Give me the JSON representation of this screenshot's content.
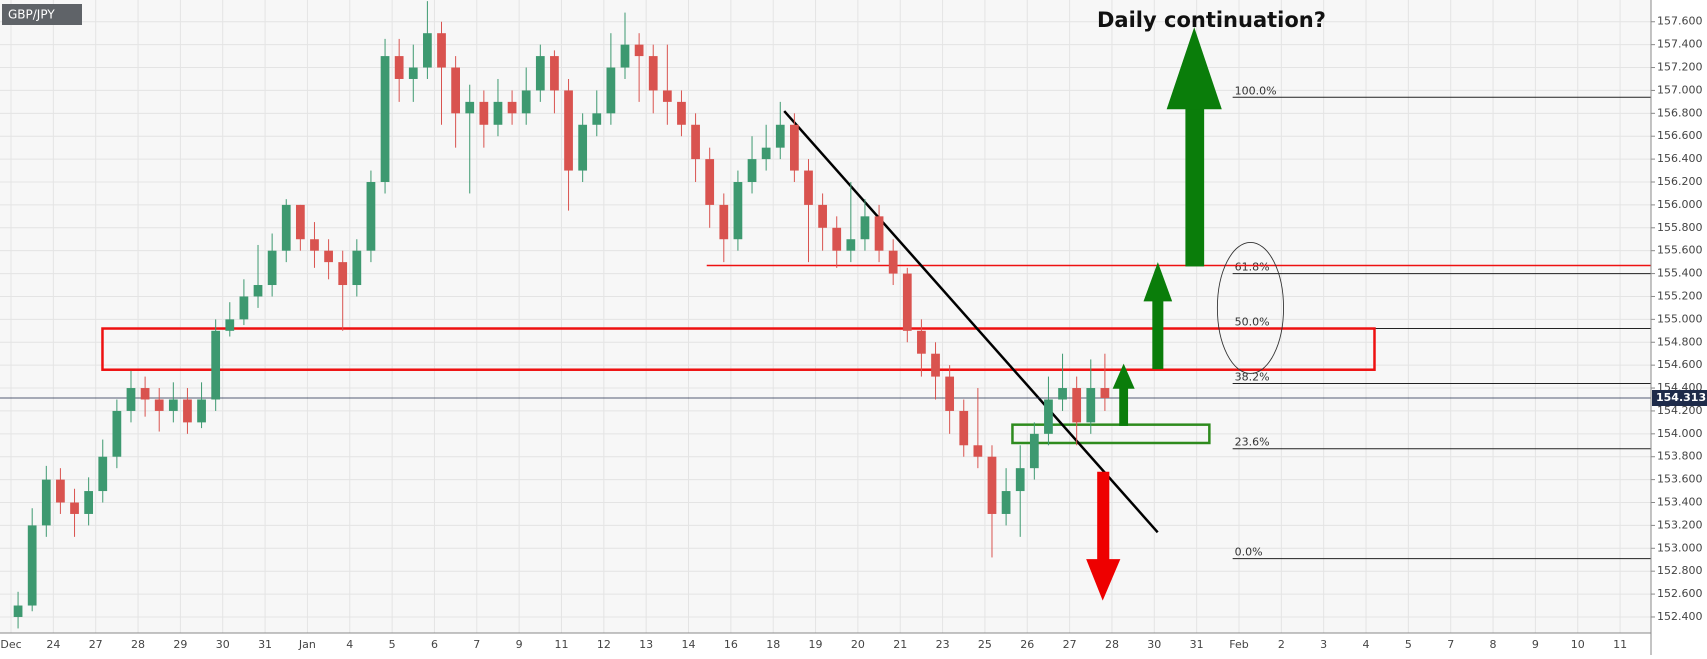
{
  "chart_data": {
    "type": "candlestick",
    "title": "GBP/JPY",
    "annotation": "Daily continuation?",
    "xlim": [
      -0.26,
      38.73
    ],
    "ylim": [
      152.26,
      157.79
    ],
    "xticks": [
      {
        "value": 0,
        "label": "Dec"
      },
      {
        "value": 1,
        "label": "24"
      },
      {
        "value": 2,
        "label": "27"
      },
      {
        "value": 3,
        "label": "28"
      },
      {
        "value": 4,
        "label": "29"
      },
      {
        "value": 5,
        "label": "30"
      },
      {
        "value": 6,
        "label": "31"
      },
      {
        "value": 7,
        "label": "Jan"
      },
      {
        "value": 8,
        "label": "4"
      },
      {
        "value": 9,
        "label": "5"
      },
      {
        "value": 10,
        "label": "6"
      },
      {
        "value": 11,
        "label": "7"
      },
      {
        "value": 12,
        "label": "9"
      },
      {
        "value": 13,
        "label": "11"
      },
      {
        "value": 14,
        "label": "12"
      },
      {
        "value": 15,
        "label": "13"
      },
      {
        "value": 16,
        "label": "14"
      },
      {
        "value": 17,
        "label": "16"
      },
      {
        "value": 18,
        "label": "18"
      },
      {
        "value": 19,
        "label": "19"
      },
      {
        "value": 20,
        "label": "20"
      },
      {
        "value": 21,
        "label": "21"
      },
      {
        "value": 22,
        "label": "23"
      },
      {
        "value": 23,
        "label": "25"
      },
      {
        "value": 24,
        "label": "26"
      },
      {
        "value": 25,
        "label": "27"
      },
      {
        "value": 26,
        "label": "28"
      },
      {
        "value": 27,
        "label": "30"
      },
      {
        "value": 28,
        "label": "31"
      },
      {
        "value": 29,
        "label": "Feb"
      },
      {
        "value": 30,
        "label": "2"
      },
      {
        "value": 31,
        "label": "3"
      },
      {
        "value": 32,
        "label": "4"
      },
      {
        "value": 33,
        "label": "5"
      },
      {
        "value": 34,
        "label": "7"
      },
      {
        "value": 35,
        "label": "8"
      },
      {
        "value": 36,
        "label": "9"
      },
      {
        "value": 37,
        "label": "10"
      },
      {
        "value": 38,
        "label": "11"
      }
    ],
    "yticks": [
      {
        "value": 152.4,
        "label": "152.400"
      },
      {
        "value": 152.6,
        "label": "152.600"
      },
      {
        "value": 152.8,
        "label": "152.800"
      },
      {
        "value": 153.0,
        "label": "153.000"
      },
      {
        "value": 153.2,
        "label": "153.200"
      },
      {
        "value": 153.4,
        "label": "153.400"
      },
      {
        "value": 153.6,
        "label": "153.600"
      },
      {
        "value": 153.8,
        "label": "153.800"
      },
      {
        "value": 154.0,
        "label": "154.000"
      },
      {
        "value": 154.2,
        "label": "154.200"
      },
      {
        "value": 154.4,
        "label": "154.400"
      },
      {
        "value": 154.6,
        "label": "154.600"
      },
      {
        "value": 154.8,
        "label": "154.800"
      },
      {
        "value": 155.0,
        "label": "155.000"
      },
      {
        "value": 155.2,
        "label": "155.200"
      },
      {
        "value": 155.4,
        "label": "155.400"
      },
      {
        "value": 155.6,
        "label": "155.600"
      },
      {
        "value": 155.8,
        "label": "155.800"
      },
      {
        "value": 156.0,
        "label": "156.000"
      },
      {
        "value": 156.2,
        "label": "156.200"
      },
      {
        "value": 156.4,
        "label": "156.400"
      },
      {
        "value": 156.6,
        "label": "156.600"
      },
      {
        "value": 156.8,
        "label": "156.800"
      },
      {
        "value": 157.0,
        "label": "157.000"
      },
      {
        "value": 157.2,
        "label": "157.200"
      },
      {
        "value": 157.4,
        "label": "157.400"
      },
      {
        "value": 157.6,
        "label": "157.600"
      }
    ],
    "grid": true,
    "up_color": "#3d9970",
    "down_color": "#d9534f",
    "open": [
      152.4,
      152.5,
      153.2,
      153.6,
      153.4,
      153.3,
      153.5,
      153.8,
      154.2,
      154.4,
      154.3,
      154.2,
      154.3,
      154.1,
      154.3,
      154.9,
      155.0,
      155.2,
      155.3,
      155.6,
      156.0,
      155.7,
      155.6,
      155.5,
      155.3,
      155.6,
      156.2,
      157.3,
      157.1,
      157.2,
      157.5,
      157.2,
      156.8,
      156.9,
      156.7,
      156.9,
      156.8,
      157.0,
      157.3,
      157.0,
      156.3,
      156.7,
      156.8,
      157.2,
      157.4,
      157.3,
      157.0,
      156.9,
      156.7,
      156.4,
      156.0,
      155.7,
      156.2,
      156.4,
      156.5,
      156.7,
      156.3,
      156.0,
      155.8,
      155.6,
      155.7,
      155.9,
      155.6,
      155.4,
      154.9,
      154.7,
      154.5,
      154.2,
      153.9,
      153.8,
      153.3,
      153.5,
      153.7,
      154.0,
      154.3,
      154.4,
      154.1,
      154.4
    ],
    "high": [
      152.62,
      153.35,
      153.72,
      153.7,
      153.52,
      153.62,
      153.95,
      154.3,
      154.55,
      154.5,
      154.4,
      154.45,
      154.4,
      154.45,
      155.0,
      155.15,
      155.35,
      155.65,
      155.75,
      156.05,
      156.0,
      155.85,
      155.7,
      155.6,
      155.7,
      156.3,
      157.45,
      157.45,
      157.4,
      157.78,
      157.6,
      157.3,
      157.05,
      157.0,
      157.1,
      157.0,
      157.2,
      157.4,
      157.35,
      157.1,
      156.8,
      157.0,
      157.5,
      157.68,
      157.5,
      157.4,
      157.4,
      157.0,
      156.8,
      156.5,
      156.1,
      156.3,
      156.6,
      156.7,
      156.9,
      156.8,
      156.4,
      156.1,
      155.9,
      156.2,
      156.05,
      156.0,
      155.7,
      155.45,
      155.0,
      154.8,
      154.6,
      154.3,
      154.4,
      153.9,
      153.7,
      153.9,
      154.1,
      154.5,
      154.7,
      154.5,
      154.65,
      154.7
    ],
    "low": [
      152.3,
      152.45,
      153.1,
      153.3,
      153.1,
      153.2,
      153.4,
      153.7,
      154.1,
      154.15,
      154.02,
      154.1,
      154.0,
      154.05,
      154.2,
      154.85,
      154.95,
      155.1,
      155.2,
      155.5,
      155.6,
      155.45,
      155.35,
      154.9,
      155.2,
      155.5,
      156.1,
      156.9,
      156.9,
      157.1,
      156.7,
      156.5,
      156.1,
      156.5,
      156.6,
      156.7,
      156.7,
      156.9,
      156.8,
      155.95,
      156.2,
      156.6,
      156.7,
      157.1,
      156.9,
      156.8,
      156.7,
      156.6,
      156.2,
      155.8,
      155.5,
      155.6,
      156.1,
      156.3,
      156.4,
      156.2,
      155.5,
      155.6,
      155.45,
      155.5,
      155.6,
      155.5,
      155.3,
      154.8,
      154.5,
      154.3,
      154.0,
      153.8,
      153.7,
      152.92,
      153.2,
      153.1,
      153.6,
      153.9,
      154.2,
      153.9,
      154.0,
      154.2
    ],
    "close": [
      152.5,
      153.2,
      153.6,
      153.4,
      153.3,
      153.5,
      153.8,
      154.2,
      154.4,
      154.3,
      154.2,
      154.3,
      154.1,
      154.3,
      154.9,
      155.0,
      155.2,
      155.3,
      155.6,
      156.0,
      155.7,
      155.6,
      155.5,
      155.3,
      155.6,
      156.2,
      157.3,
      157.1,
      157.2,
      157.5,
      157.2,
      156.8,
      156.9,
      156.7,
      156.9,
      156.8,
      157.0,
      157.3,
      157.0,
      156.3,
      156.7,
      156.8,
      157.2,
      157.4,
      157.3,
      157.0,
      156.9,
      156.7,
      156.4,
      156.0,
      155.7,
      156.2,
      156.4,
      156.5,
      156.7,
      156.3,
      156.0,
      155.8,
      155.6,
      155.7,
      155.9,
      155.6,
      155.4,
      154.9,
      154.7,
      154.5,
      154.2,
      153.9,
      153.8,
      153.3,
      153.5,
      153.7,
      154.0,
      154.3,
      154.4,
      154.1,
      154.4,
      154.313
    ],
    "last_price": 154.313,
    "fib_start": 28.85,
    "fib_levels": [
      {
        "label": "100.0%",
        "value": 156.94
      },
      {
        "label": "61.8%",
        "value": 155.4
      },
      {
        "label": "50.0%",
        "value": 154.92
      },
      {
        "label": "38.2%",
        "value": 154.44
      },
      {
        "label": "23.6%",
        "value": 153.87
      },
      {
        "label": "0.0%",
        "value": 152.91
      }
    ],
    "resistance_line": {
      "value": 155.47,
      "x": 16.43
    },
    "resistance_zone": {
      "low": 154.56,
      "high": 154.92,
      "x": [
        2.16,
        32.2
      ]
    },
    "support_zone": {
      "low": 153.92,
      "high": 154.08,
      "x": [
        23.65,
        28.3
      ]
    },
    "trendline": {
      "x": [
        18.26,
        27.08
      ],
      "y": [
        156.82,
        153.14
      ]
    }
  }
}
